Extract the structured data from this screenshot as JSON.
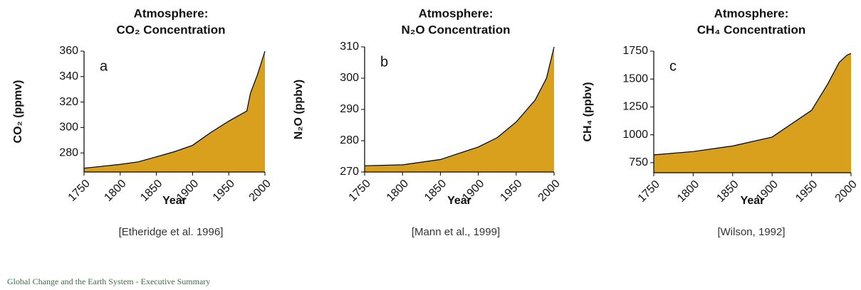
{
  "chart_data": [
    {
      "type": "area",
      "title": "Atmosphere:",
      "subtitle": "CO₂ Concentration",
      "annotation": "a",
      "xlabel": "Year",
      "ylabel": "CO₂ (ppmv)",
      "source": "[Etheridge et al. 1996]",
      "color": "#d9a01e",
      "x": [
        1750,
        1800,
        1825,
        1850,
        1875,
        1900,
        1925,
        1950,
        1975,
        1980,
        1990,
        2000
      ],
      "values": [
        268,
        271,
        273,
        277,
        281,
        286,
        296,
        305,
        313,
        327,
        342,
        360
      ],
      "xlim": [
        1750,
        2000
      ],
      "xticks": [
        1750,
        1800,
        1850,
        1900,
        1950,
        2000
      ],
      "ylim": [
        265,
        360
      ],
      "yticks": [
        280,
        300,
        320,
        340,
        360
      ]
    },
    {
      "type": "area",
      "title": "Atmosphere:",
      "subtitle": "N₂O Concentration",
      "annotation": "b",
      "xlabel": "Year",
      "ylabel": "N₂O (ppbv)",
      "source": "[Mann et al., 1999]",
      "color": "#d9a01e",
      "x": [
        1750,
        1800,
        1850,
        1900,
        1925,
        1950,
        1975,
        1990,
        2000
      ],
      "values": [
        272,
        272.3,
        274,
        278,
        281,
        286,
        293,
        300,
        310
      ],
      "xlim": [
        1750,
        2000
      ],
      "xticks": [
        1750,
        1800,
        1850,
        1900,
        1950,
        2000
      ],
      "ylim": [
        270,
        310
      ],
      "yticks": [
        270,
        280,
        290,
        300,
        310
      ]
    },
    {
      "type": "area",
      "title": "Atmosphere:",
      "subtitle": "CH₄ Concentration",
      "annotation": "c",
      "xlabel": "Year",
      "ylabel": "CH₄ (ppbv)",
      "source": "[Wilson, 1992]",
      "color": "#d9a01e",
      "x": [
        1750,
        1800,
        1850,
        1900,
        1925,
        1950,
        1970,
        1985,
        1995,
        2000
      ],
      "values": [
        820,
        850,
        900,
        980,
        1100,
        1220,
        1450,
        1650,
        1715,
        1730
      ],
      "xlim": [
        1750,
        2000
      ],
      "xticks": [
        1750,
        1800,
        1850,
        1900,
        1950,
        2000
      ],
      "ylim": [
        660,
        1750
      ],
      "yticks": [
        750,
        1000,
        1250,
        1500,
        1750
      ]
    }
  ],
  "footer": "Global Change and the Earth System - Executive Summary"
}
